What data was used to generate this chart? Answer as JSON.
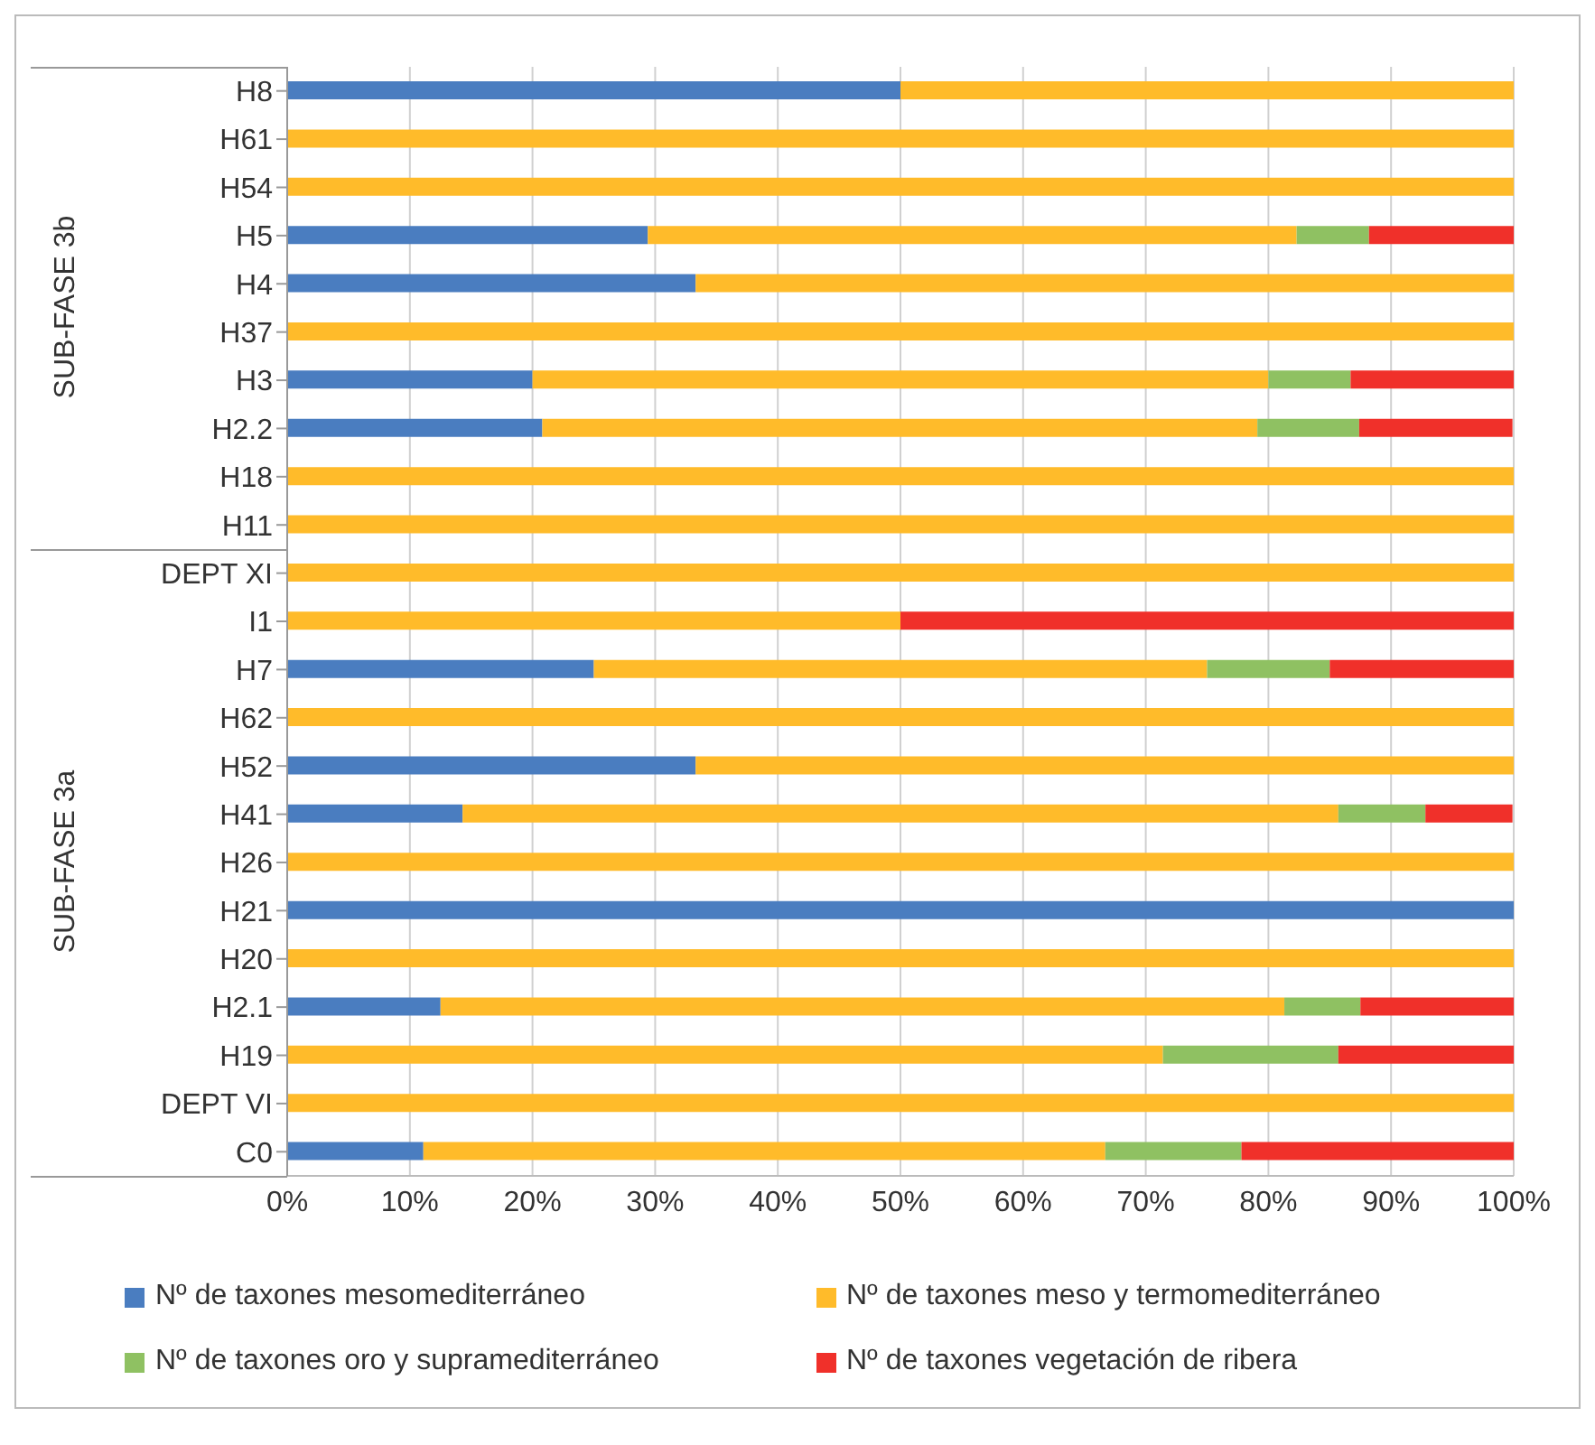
{
  "chart_data": {
    "type": "bar",
    "orientation": "horizontal",
    "stacked": true,
    "categories": [
      "H8",
      "H61",
      "H54",
      "H5",
      "H4",
      "H37",
      "H3",
      "H2.2",
      "H18",
      "H11",
      "DEPT XI",
      "I1",
      "H7",
      "H62",
      "H52",
      "H41",
      "H26",
      "H21",
      "H20",
      "H2.1",
      "H19",
      "DEPT VI",
      "C0"
    ],
    "series": [
      {
        "name": "Nº de taxones mesomediterráneo",
        "color": "#4a7dc0",
        "values": [
          50,
          0,
          0,
          29.4,
          33.3,
          0,
          20,
          20.8,
          0,
          0,
          0,
          0,
          25,
          0,
          33.3,
          14.3,
          0,
          100,
          0,
          12.5,
          0,
          0,
          11.1
        ]
      },
      {
        "name": "Nº de taxones meso y termomediterráneo",
        "color": "#ffbb2a",
        "values": [
          50,
          100,
          100,
          52.9,
          66.7,
          100,
          60,
          58.3,
          100,
          100,
          100,
          50,
          50,
          100,
          66.7,
          71.4,
          100,
          0,
          100,
          68.8,
          71.4,
          100,
          55.6
        ]
      },
      {
        "name": "Nº de taxones oro y supramediterráneo",
        "color": "#8fc162",
        "values": [
          0,
          0,
          0,
          5.9,
          0,
          0,
          6.7,
          8.3,
          0,
          0,
          0,
          0,
          10,
          0,
          0,
          7.1,
          0,
          0,
          0,
          6.2,
          14.3,
          0,
          11.1
        ]
      },
      {
        "name": "Nº de taxones vegetación de ribera",
        "color": "#f0302a",
        "values": [
          0,
          0,
          0,
          11.8,
          0,
          0,
          13.3,
          12.5,
          0,
          0,
          0,
          50,
          15,
          0,
          0,
          7.1,
          0,
          0,
          0,
          12.5,
          14.3,
          0,
          22.2
        ]
      }
    ],
    "xlim": [
      0,
      100
    ],
    "xticks": [
      {
        "value": 0,
        "label": "0%"
      },
      {
        "value": 10,
        "label": "10%"
      },
      {
        "value": 20,
        "label": "20%"
      },
      {
        "value": 30,
        "label": "30%"
      },
      {
        "value": 40,
        "label": "40%"
      },
      {
        "value": 50,
        "label": "50%"
      },
      {
        "value": 60,
        "label": "60%"
      },
      {
        "value": 70,
        "label": "70%"
      },
      {
        "value": 80,
        "label": "80%"
      },
      {
        "value": 90,
        "label": "90%"
      },
      {
        "value": 100,
        "label": "100%"
      }
    ],
    "annotations": [
      "SUB-FASE 3b",
      "SUB-FASE 3a"
    ],
    "grid": "x",
    "legend": "bottom"
  }
}
